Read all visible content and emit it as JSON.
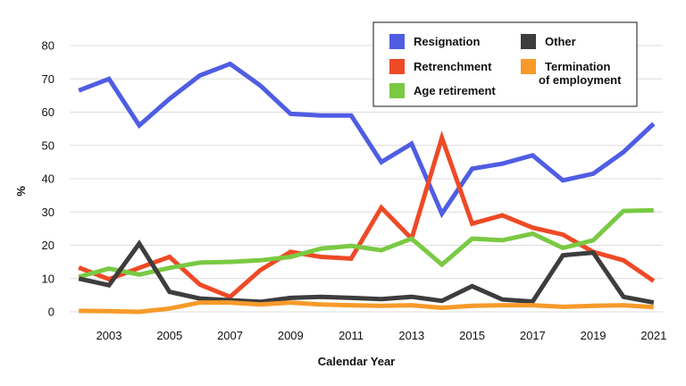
{
  "chart_data": {
    "type": "line",
    "xlabel": "Calendar Year",
    "ylabel": "%",
    "ylim": [
      0,
      80
    ],
    "yticks": [
      0,
      10,
      20,
      30,
      40,
      50,
      60,
      70,
      80
    ],
    "xlim": [
      2001.7,
      2021.3
    ],
    "xticks": [
      2003,
      2005,
      2007,
      2009,
      2011,
      2013,
      2015,
      2017,
      2019,
      2021
    ],
    "x": [
      2002,
      2003,
      2004,
      2005,
      2006,
      2007,
      2008,
      2009,
      2010,
      2011,
      2012,
      2013,
      2014,
      2015,
      2016,
      2017,
      2018,
      2019,
      2020,
      2021
    ],
    "grid": true,
    "legend_position": "top-right",
    "series": [
      {
        "name": "Resignation",
        "color": "#4f5de3",
        "values": [
          66.5,
          70,
          56,
          64,
          71,
          74.5,
          68,
          59.5,
          59,
          59,
          45,
          50.5,
          29.5,
          43,
          44.5,
          47,
          39.5,
          41.5,
          48,
          56.5
        ]
      },
      {
        "name": "Retrenchment",
        "color": "#ee4a26",
        "values": [
          13.3,
          9.8,
          13.2,
          16.5,
          8.2,
          4.5,
          12.5,
          18,
          16.5,
          16,
          31.3,
          22,
          52.3,
          26.5,
          29,
          25.3,
          23.2,
          18,
          15.5,
          9.3
        ]
      },
      {
        "name": "Age retirement",
        "color": "#7ac943",
        "values": [
          10.5,
          13,
          11.2,
          13.2,
          14.8,
          15,
          15.5,
          16.5,
          19,
          19.8,
          18.5,
          22,
          14.2,
          22,
          21.5,
          23.5,
          19.2,
          21.5,
          30.3,
          30.5
        ]
      },
      {
        "name": "Other",
        "color": "#3d3d3d",
        "values": [
          10,
          8,
          20.5,
          6,
          4,
          3.5,
          3,
          4.2,
          4.5,
          4.2,
          3.8,
          4.5,
          3.3,
          7.7,
          3.7,
          3.1,
          17,
          17.8,
          4.5,
          2.8
        ]
      },
      {
        "name": "Termination\nof employment",
        "color": "#f79a2a",
        "values": [
          0.3,
          0.2,
          0,
          1,
          2.8,
          2.8,
          2.2,
          2.8,
          2.2,
          2,
          1.8,
          2,
          1.2,
          1.8,
          2,
          2,
          1.5,
          1.8,
          2,
          1.4
        ]
      }
    ]
  }
}
